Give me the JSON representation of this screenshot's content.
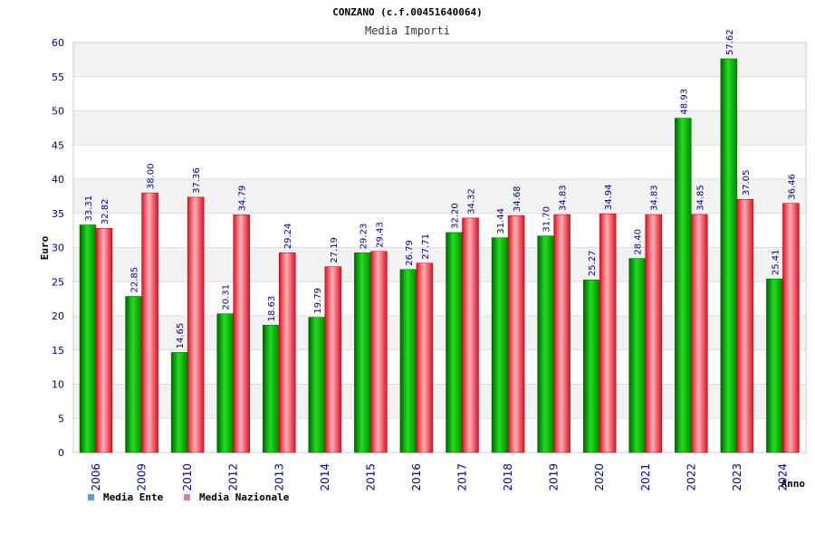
{
  "chart_data": {
    "type": "bar",
    "title": "CONZANO (c.f.00451640064)",
    "subtitle": "Media Importi",
    "xlabel": "Anno",
    "ylabel": "Euro",
    "ylim": [
      0,
      60
    ],
    "yticks": [
      0,
      5,
      10,
      15,
      20,
      25,
      30,
      35,
      40,
      45,
      50,
      55,
      60
    ],
    "grid": "horizontal bands",
    "legend_position": "bottom-left",
    "categories": [
      "2006",
      "2009",
      "2010",
      "2012",
      "2013",
      "2014",
      "2015",
      "2016",
      "2017",
      "2018",
      "2019",
      "2020",
      "2021",
      "2022",
      "2023",
      "2024"
    ],
    "series": [
      {
        "name": "Media Ente",
        "color": "#00c000",
        "legend_color": "#5b9bd5",
        "values": [
          33.31,
          22.85,
          14.65,
          20.31,
          18.63,
          19.79,
          29.23,
          26.79,
          32.2,
          31.44,
          31.7,
          25.27,
          28.4,
          48.93,
          57.62,
          25.41
        ],
        "labels": [
          "33.31",
          "22.85",
          "14.65",
          "20.31",
          "18.63",
          "19.79",
          "29.23",
          "26.79",
          "32.20",
          "31.44",
          "31.70",
          "25.27",
          "28.40",
          "48.93",
          "57.62",
          "25.41"
        ]
      },
      {
        "name": "Media Nazionale",
        "color": "#e02030",
        "legend_color": "#d080b0",
        "values": [
          32.82,
          38.0,
          37.36,
          34.79,
          29.24,
          27.19,
          29.43,
          27.71,
          34.32,
          34.68,
          34.83,
          34.94,
          34.83,
          34.85,
          37.05,
          36.46
        ],
        "labels": [
          "32.82",
          "38.00",
          "37.36",
          "34.79",
          "29.24",
          "27.19",
          "29.43",
          "27.71",
          "34.32",
          "34.68",
          "34.83",
          "34.94",
          "34.83",
          "34.85",
          "37.05",
          "36.46"
        ]
      }
    ]
  }
}
